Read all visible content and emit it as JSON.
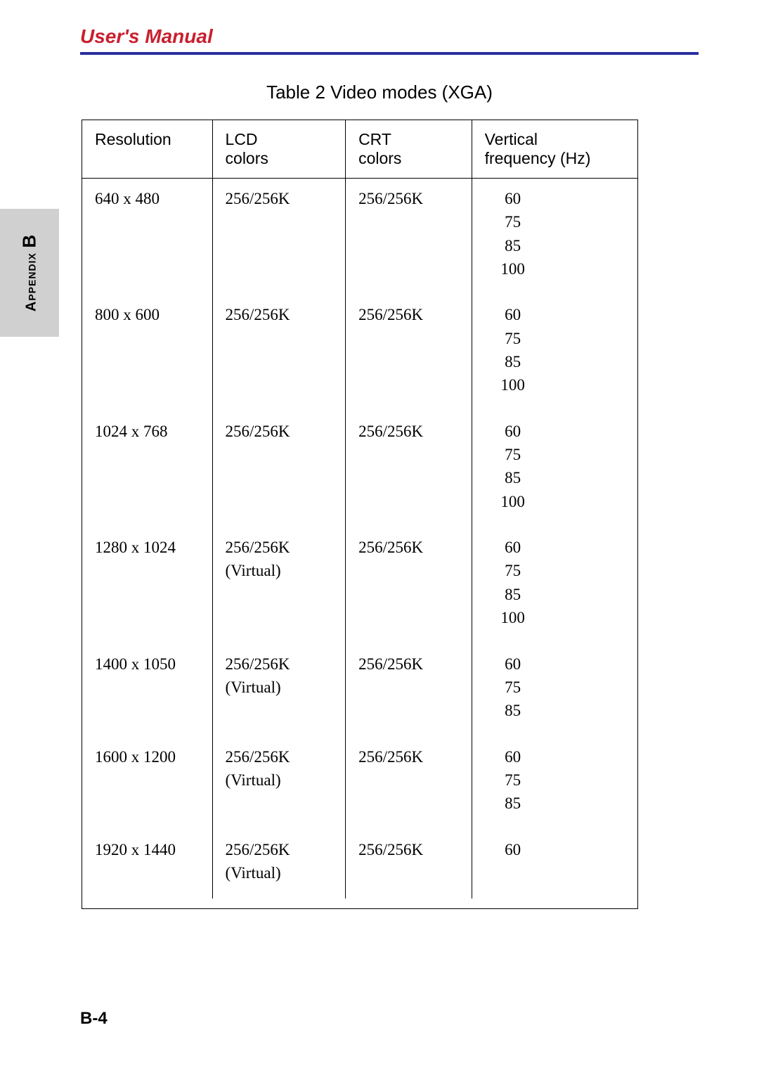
{
  "header": {
    "title": "User's Manual"
  },
  "colors": {
    "header_text": "#c8202f",
    "header_rule": "#2a2f9e",
    "side_tab_bg": "#d0d0d0",
    "text": "#000000",
    "page_bg": "#ffffff",
    "border": "#000000"
  },
  "side_tab": {
    "label_small": "Appendix",
    "label_big": "B"
  },
  "table": {
    "title": "Table 2  Video modes (XGA)",
    "columns": [
      {
        "line1": "Resolution",
        "line2": ""
      },
      {
        "line1": "LCD",
        "line2": "colors"
      },
      {
        "line1": "CRT",
        "line2": "colors"
      },
      {
        "line1": "Vertical",
        "line2": "frequency (Hz)"
      }
    ],
    "rows": [
      {
        "resolution": "640 x 480",
        "lcd": "256/256K",
        "lcd2": "",
        "crt": "256/256K",
        "freqs": [
          "60",
          "75",
          "85",
          "100"
        ]
      },
      {
        "resolution": "800 x 600",
        "lcd": "256/256K",
        "lcd2": "",
        "crt": "256/256K",
        "freqs": [
          "60",
          "75",
          "85",
          "100"
        ]
      },
      {
        "resolution": "1024 x 768",
        "lcd": "256/256K",
        "lcd2": "",
        "crt": "256/256K",
        "freqs": [
          "60",
          "75",
          "85",
          "100"
        ]
      },
      {
        "resolution": "1280 x 1024",
        "lcd": "256/256K",
        "lcd2": "(Virtual)",
        "crt": "256/256K",
        "freqs": [
          "60",
          "75",
          "85",
          "100"
        ]
      },
      {
        "resolution": "1400 x 1050",
        "lcd": "256/256K",
        "lcd2": "(Virtual)",
        "crt": "256/256K",
        "freqs": [
          "60",
          "75",
          "85"
        ]
      },
      {
        "resolution": "1600 x 1200",
        "lcd": "256/256K",
        "lcd2": "(Virtual)",
        "crt": "256/256K",
        "freqs": [
          "60",
          "75",
          "85"
        ]
      },
      {
        "resolution": "1920 x 1440",
        "lcd": "256/256K",
        "lcd2": "(Virtual)",
        "crt": "256/256K",
        "freqs": [
          "60"
        ]
      }
    ]
  },
  "footer": {
    "page_number": "B-4"
  }
}
